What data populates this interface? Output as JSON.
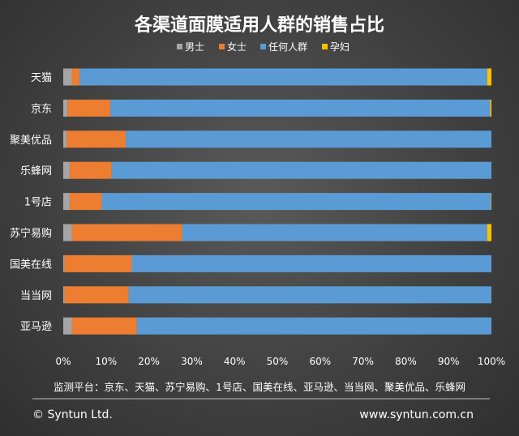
{
  "chart_data": {
    "type": "bar",
    "orientation": "horizontal",
    "stacked": "percent",
    "title": "各渠道面膜适用人群的销售占比",
    "categories": [
      "天猫",
      "京东",
      "聚美优品",
      "乐蜂网",
      "1号店",
      "苏宁易购",
      "国美在线",
      "当当网",
      "亚马逊"
    ],
    "series": [
      {
        "name": "男士",
        "color": "#a5a5a5",
        "values": [
          2.0,
          1.0,
          0.8,
          1.5,
          1.5,
          2.0,
          0.3,
          0.3,
          2.0
        ]
      },
      {
        "name": "女士",
        "color": "#ed7d31",
        "values": [
          1.8,
          10.0,
          13.8,
          9.8,
          7.5,
          25.8,
          15.7,
          15.0,
          15.2
        ]
      },
      {
        "name": "任何人群",
        "color": "#5b9bd5",
        "values": [
          95.2,
          88.7,
          85.4,
          88.7,
          90.9,
          71.2,
          84.0,
          84.7,
          82.8
        ]
      },
      {
        "name": "孕妇",
        "color": "#ffc000",
        "values": [
          1.0,
          0.3,
          0.0,
          0.0,
          0.1,
          1.0,
          0.0,
          0.0,
          0.0
        ]
      }
    ],
    "x_ticks": [
      "0%",
      "10%",
      "20%",
      "30%",
      "40%",
      "50%",
      "60%",
      "70%",
      "80%",
      "90%",
      "100%"
    ],
    "xlim": [
      0,
      100
    ],
    "grid": false,
    "legend_position": "top"
  },
  "source_note": "监测平台：京东、天猫、苏宁易购、1号店、国美在线、亚马逊、当当网、聚美优品、乐蜂网",
  "footer": {
    "copyright": "© Syntun Ltd.",
    "website": "www.syntun.com.cn"
  }
}
